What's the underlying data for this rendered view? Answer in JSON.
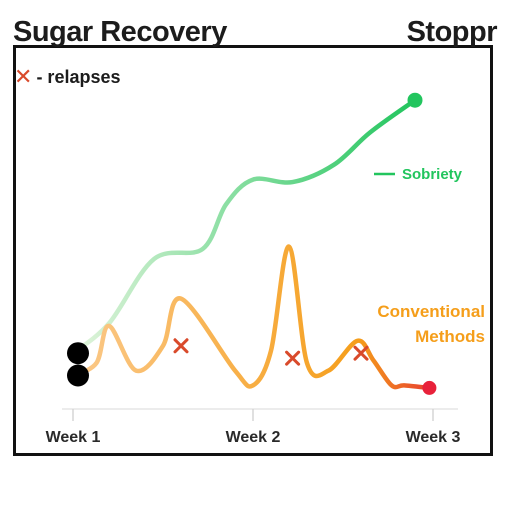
{
  "chart_data": {
    "type": "line",
    "title": "Sugar Recovery",
    "brand": "Stoppr",
    "legend": {
      "relapse_symbol": "✕",
      "relapse_label": "- relapses"
    },
    "x_ticks": [
      "Week 1",
      "Week 2",
      "Week 3"
    ],
    "xlim": [
      0,
      2
    ],
    "ylim": [
      0,
      1
    ],
    "series": [
      {
        "name": "Sobriety",
        "label_lines": [
          "Sobriety"
        ],
        "color": "#22c55e",
        "color_start": "#e2f4dc",
        "x": [
          0,
          0.2,
          0.45,
          0.72,
          0.85,
          1.0,
          1.22,
          1.45,
          1.65,
          1.9
        ],
        "y": [
          0.1,
          0.22,
          0.48,
          0.52,
          0.7,
          0.8,
          0.79,
          0.86,
          0.99,
          1.12
        ]
      },
      {
        "name": "Conventional Methods",
        "label_lines": [
          "Conventional",
          "Methods"
        ],
        "color": "#f59e1a",
        "color_end": "#e8412f",
        "x": [
          0,
          0.13,
          0.2,
          0.35,
          0.5,
          0.6,
          0.9,
          1.0,
          1.1,
          1.2,
          1.3,
          1.42,
          1.58,
          1.67,
          1.77,
          1.84,
          1.98
        ],
        "y": [
          0.01,
          0.06,
          0.21,
          0.03,
          0.13,
          0.32,
          0.03,
          -0.03,
          0.11,
          0.53,
          0.06,
          0.03,
          0.15,
          0.07,
          -0.03,
          -0.03,
          -0.04
        ]
      }
    ],
    "relapses": [
      {
        "x": 0.6,
        "y": 0.13
      },
      {
        "x": 1.22,
        "y": 0.08
      },
      {
        "x": 1.6,
        "y": 0.1
      }
    ],
    "grid": false
  }
}
